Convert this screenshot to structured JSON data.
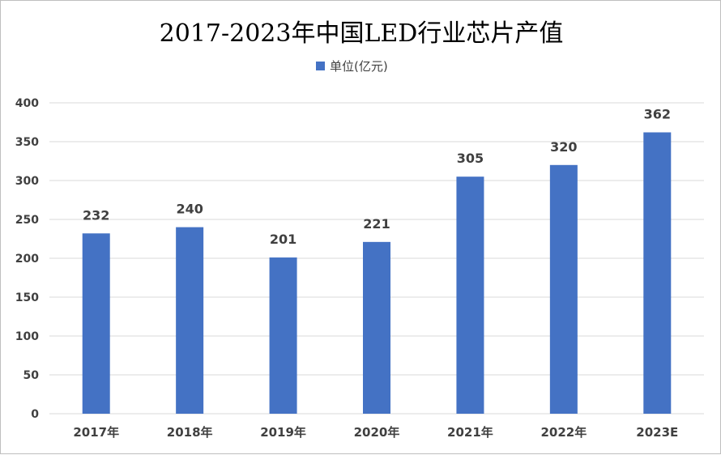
{
  "chart_data": {
    "type": "bar",
    "title": "2017-2023年中国LED行业芯片产值",
    "categories": [
      "2017年",
      "2018年",
      "2019年",
      "2020年",
      "2021年",
      "2022年",
      "2023E"
    ],
    "series": [
      {
        "name": "单位(亿元)",
        "values": [
          232,
          240,
          201,
          221,
          305,
          320,
          362
        ],
        "color": "#4472c4"
      }
    ],
    "ylim": [
      0,
      400
    ],
    "yticks": [
      0,
      50,
      100,
      150,
      200,
      250,
      300,
      350,
      400
    ],
    "grid": true,
    "legend": "top-center",
    "data_labels": true
  }
}
